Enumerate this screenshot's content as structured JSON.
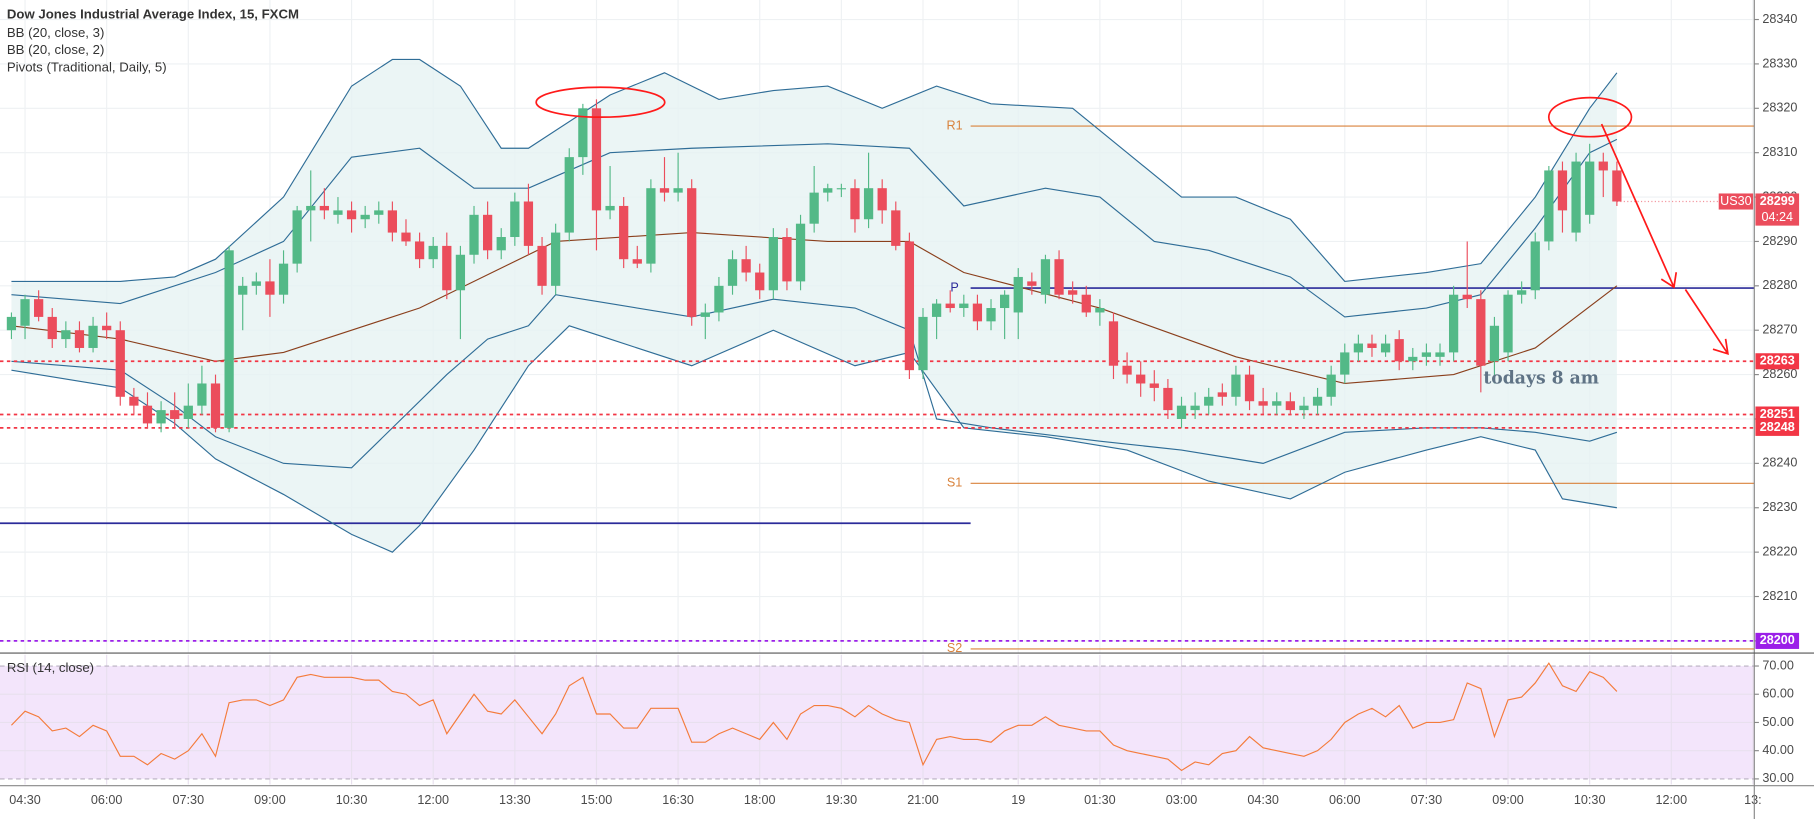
{
  "chart_data": {
    "type": "candlestick",
    "title": "Dow Jones Industrial Average Index, 15, FXCM",
    "studies": [
      "BB (20, close, 3)",
      "BB (20, close, 2)",
      "Pivots (Traditional, Daily, 5)"
    ],
    "up_color": "#53b987",
    "down_color": "#eb4d5c",
    "xlim": [
      -0.84,
      128.1
    ],
    "xticks": [
      {
        "value": 1,
        "label": "04:30"
      },
      {
        "value": 7,
        "label": "06:00"
      },
      {
        "value": 13,
        "label": "07:30"
      },
      {
        "value": 19,
        "label": "09:00"
      },
      {
        "value": 25,
        "label": "10:30"
      },
      {
        "value": 31,
        "label": "12:00"
      },
      {
        "value": 37,
        "label": "13:30"
      },
      {
        "value": 43,
        "label": "15:00"
      },
      {
        "value": 49,
        "label": "16:30"
      },
      {
        "value": 55,
        "label": "18:00"
      },
      {
        "value": 61,
        "label": "19:30"
      },
      {
        "value": 67,
        "label": "21:00"
      },
      {
        "value": 74,
        "label": "19"
      },
      {
        "value": 80,
        "label": "01:30"
      },
      {
        "value": 86,
        "label": "03:00"
      },
      {
        "value": 92,
        "label": "04:30"
      },
      {
        "value": 98,
        "label": "06:00"
      },
      {
        "value": 104,
        "label": "07:30"
      },
      {
        "value": 110,
        "label": "09:00"
      },
      {
        "value": 116,
        "label": "10:30"
      },
      {
        "value": 122,
        "label": "12:00"
      },
      {
        "value": 128,
        "label": "13:"
      }
    ],
    "ylim": [
      28197.4,
      28344.4
    ],
    "yticks": [
      28200,
      28210,
      28220,
      28230,
      28240,
      28250,
      28260,
      28270,
      28280,
      28290,
      28300,
      28310,
      28320,
      28330,
      28340
    ],
    "grid": true,
    "ohlc": [
      [
        28270,
        28274,
        28268,
        28273
      ],
      [
        28271,
        28278,
        28268,
        28277
      ],
      [
        28277,
        28279,
        28272,
        28273
      ],
      [
        28273,
        28275,
        28266,
        28268
      ],
      [
        28268,
        28272,
        28266,
        28270
      ],
      [
        28270,
        28272,
        28265,
        28266
      ],
      [
        28266,
        28273,
        28265,
        28271
      ],
      [
        28271,
        28274,
        28268,
        28270
      ],
      [
        28270,
        28272,
        28253,
        28255
      ],
      [
        28255,
        28257,
        28251,
        28253
      ],
      [
        28253,
        28256,
        28248,
        28249
      ],
      [
        28249,
        28254,
        28247,
        28252
      ],
      [
        28252,
        28256,
        28248,
        28250
      ],
      [
        28250,
        28258,
        28248,
        28253
      ],
      [
        28253,
        28262,
        28251,
        28258
      ],
      [
        28258,
        28260,
        28247,
        28248
      ],
      [
        28248,
        28289,
        28247,
        28288
      ],
      [
        28278,
        28282,
        28270,
        28280
      ],
      [
        28280,
        28283,
        28278,
        28281
      ],
      [
        28281,
        28286,
        28273,
        28278
      ],
      [
        28278,
        28288,
        28276,
        28285
      ],
      [
        28285,
        28298,
        28283,
        28297
      ],
      [
        28297,
        28306,
        28290,
        28298
      ],
      [
        28298,
        28302,
        28295,
        28297
      ],
      [
        28296,
        28300,
        28294,
        28297
      ],
      [
        28297,
        28299,
        28292,
        28295
      ],
      [
        28295,
        28298,
        28293,
        28296
      ],
      [
        28296,
        28299,
        28294,
        28297
      ],
      [
        28297,
        28299,
        28290,
        28292
      ],
      [
        28292,
        28295,
        28289,
        28290
      ],
      [
        28290,
        28292,
        28284,
        28286
      ],
      [
        28286,
        28291,
        28284,
        28289
      ],
      [
        28289,
        28292,
        28277,
        28279
      ],
      [
        28279,
        28289,
        28268,
        28287
      ],
      [
        28287,
        28298,
        28285,
        28296
      ],
      [
        28296,
        28299,
        28286,
        28288
      ],
      [
        28288,
        28293,
        28286,
        28291
      ],
      [
        28291,
        28301,
        28289,
        28299
      ],
      [
        28299,
        28303,
        28287,
        28289
      ],
      [
        28289,
        28291,
        28278,
        28280
      ],
      [
        28280,
        28294,
        28278,
        28292
      ],
      [
        28292,
        28311,
        28290,
        28309
      ],
      [
        28309,
        28321,
        28305,
        28320
      ],
      [
        28320,
        28322,
        28288,
        28297
      ],
      [
        28297,
        28307,
        28295,
        28298
      ],
      [
        28298,
        28300,
        28284,
        28286
      ],
      [
        28286,
        28289,
        28284,
        28285
      ],
      [
        28285,
        28304,
        28283,
        28302
      ],
      [
        28302,
        28309,
        28299,
        28301
      ],
      [
        28301,
        28310,
        28299,
        28302
      ],
      [
        28302,
        28304,
        28271,
        28273
      ],
      [
        28273,
        28276,
        28268,
        28274
      ],
      [
        28274,
        28282,
        28272,
        28280
      ],
      [
        28280,
        28288,
        28278,
        28286
      ],
      [
        28286,
        28289,
        28281,
        28283
      ],
      [
        28283,
        28285,
        28277,
        28279
      ],
      [
        28279,
        28293,
        28277,
        28291
      ],
      [
        28291,
        28293,
        28279,
        28281
      ],
      [
        28281,
        28296,
        28279,
        28294
      ],
      [
        28294,
        28307,
        28292,
        28301
      ],
      [
        28301,
        28303,
        28299,
        28302
      ],
      [
        28302,
        28303,
        28300,
        28302
      ],
      [
        28302,
        28304,
        28292,
        28295
      ],
      [
        28295,
        28310,
        28293,
        28302
      ],
      [
        28302,
        28304,
        28294,
        28297
      ],
      [
        28297,
        28299,
        28288,
        28289
      ],
      [
        28290,
        28292,
        28259,
        28261
      ],
      [
        28261,
        28275,
        28259,
        28273
      ],
      [
        28273,
        28277,
        28268,
        28276
      ],
      [
        28276,
        28279,
        28274,
        28275
      ],
      [
        28275,
        28278,
        28273,
        28276
      ],
      [
        28276,
        28278,
        28270,
        28272
      ],
      [
        28272,
        28277,
        28270,
        28275
      ],
      [
        28275,
        28279,
        28268,
        28278
      ],
      [
        28274,
        28284,
        28268,
        28282
      ],
      [
        28281,
        28283,
        28278,
        28280
      ],
      [
        28278,
        28287,
        28276,
        28286
      ],
      [
        28286,
        28288,
        28277,
        28278
      ],
      [
        28279,
        28281,
        28276,
        28278
      ],
      [
        28278,
        28280,
        28273,
        28274
      ],
      [
        28274,
        28277,
        28271,
        28275
      ],
      [
        28272,
        28274,
        28259,
        28262
      ],
      [
        28262,
        28265,
        28258,
        28260
      ],
      [
        28260,
        28263,
        28255,
        28258
      ],
      [
        28258,
        28261,
        28254,
        28257
      ],
      [
        28257,
        28259,
        28250,
        28252
      ],
      [
        28250,
        28255,
        28248,
        28253
      ],
      [
        28252,
        28256,
        28250,
        28253
      ],
      [
        28253,
        28257,
        28251,
        28255
      ],
      [
        28256,
        28258,
        28253,
        28255
      ],
      [
        28255,
        28262,
        28253,
        28260
      ],
      [
        28260,
        28262,
        28252,
        28254
      ],
      [
        28254,
        28257,
        28251,
        28253
      ],
      [
        28253,
        28256,
        28251,
        28254
      ],
      [
        28254,
        28256,
        28251,
        28252
      ],
      [
        28252,
        28255,
        28250,
        28253
      ],
      [
        28253,
        28257,
        28251,
        28255
      ],
      [
        28255,
        28262,
        28253,
        28260
      ],
      [
        28260,
        28267,
        28258,
        28265
      ],
      [
        28265,
        28269,
        28263,
        28267
      ],
      [
        28267,
        28269,
        28264,
        28266
      ],
      [
        28265,
        28269,
        28264,
        28267
      ],
      [
        28268,
        28270,
        28261,
        28263
      ],
      [
        28263,
        28266,
        28261,
        28264
      ],
      [
        28264,
        28267,
        28262,
        28265
      ],
      [
        28264,
        28267,
        28262,
        28265
      ],
      [
        28265,
        28280,
        28263,
        28278
      ],
      [
        28278,
        28290,
        28275,
        28277
      ],
      [
        28277,
        28279,
        28256,
        28262
      ],
      [
        28263,
        28273,
        28258,
        28271
      ],
      [
        28265,
        28279,
        28263,
        28278
      ],
      [
        28278,
        28281,
        28276,
        28279
      ],
      [
        28279,
        28292,
        28277,
        28290
      ],
      [
        28290,
        28307,
        28288,
        28306
      ],
      [
        28306,
        28308,
        28292,
        28297
      ],
      [
        28292,
        28310,
        28290,
        28308
      ],
      [
        28296,
        28312,
        28294,
        28308
      ],
      [
        28308,
        28310,
        28300,
        28306
      ],
      [
        28306,
        28308,
        28298,
        28299
      ]
    ],
    "bands": [
      {
        "color": "#2f6d97",
        "x": [
          0,
          8,
          12,
          15,
          20,
          25,
          28,
          30,
          33,
          36,
          38,
          41,
          44,
          48,
          52,
          56,
          60,
          64,
          68,
          72,
          78,
          82,
          86,
          90,
          94,
          98,
          104,
          108,
          112,
          116,
          118
        ],
        "values": [
          28281,
          28281,
          28282,
          28286,
          28300,
          28325,
          28331,
          28331,
          28325,
          28311,
          28311,
          28317,
          28323,
          28328,
          28322,
          28324,
          28325,
          28320,
          28325,
          28321,
          28320,
          28310,
          28300,
          28300,
          28295,
          28281,
          28283,
          28285,
          28300,
          28320,
          28328
        ]
      },
      {
        "color": "#2f6d97",
        "x": [
          0,
          8,
          15,
          20,
          25,
          30,
          34,
          38,
          41,
          44,
          50,
          60,
          66,
          70,
          76,
          80,
          84,
          88,
          94,
          98,
          104,
          108,
          112,
          116,
          118
        ],
        "values": [
          28278,
          28276,
          28283,
          28290,
          28309,
          28311,
          28302,
          28302,
          28306,
          28310,
          28311,
          28312,
          28311,
          28298,
          28302,
          28300,
          28290,
          28288,
          28282,
          28273,
          28275,
          28278,
          28293,
          28310,
          28313
        ]
      },
      {
        "color": "#8a3f1c",
        "x": [
          0,
          8,
          15,
          20,
          30,
          40,
          50,
          60,
          66,
          70,
          80,
          90,
          98,
          106,
          112,
          118
        ],
        "values": [
          28271,
          28268,
          28263,
          28265,
          28275,
          28290,
          28292,
          28290,
          28290,
          28283,
          28275,
          28264,
          28258,
          28260,
          28266,
          28280
        ]
      },
      {
        "color": "#2f6d97",
        "x": [
          0,
          8,
          12,
          15,
          20,
          25,
          28,
          32,
          35,
          38,
          40,
          44,
          50,
          56,
          62,
          66,
          68,
          72,
          80,
          86,
          92,
          98,
          104,
          108,
          112,
          116,
          118
        ],
        "values": [
          28263,
          28261,
          28253,
          28246,
          28240,
          28239,
          28248,
          28260,
          28268,
          28271,
          28278,
          28276,
          28273,
          28277,
          28275,
          28270,
          28250,
          28248,
          28245,
          28243,
          28240,
          28247,
          28248,
          28248,
          28247,
          28245,
          28247
        ]
      },
      {
        "color": "#2f6d97",
        "x": [
          0,
          8,
          12,
          15,
          20,
          25,
          28,
          30,
          34,
          38,
          41,
          44,
          50,
          56,
          62,
          66,
          70,
          76,
          82,
          88,
          94,
          98,
          104,
          108,
          112,
          114,
          118
        ],
        "values": [
          28261,
          28257,
          28249,
          28241,
          28233,
          28224,
          28220,
          28226,
          28243,
          28262,
          28271,
          28268,
          28262,
          28270,
          28262,
          28265,
          28248,
          28246,
          28243,
          28236,
          28232,
          28238,
          28243,
          28246,
          28243,
          28232,
          28230
        ]
      }
    ],
    "band_fill": "#e6f3f3",
    "pivots_start_x": 70.5,
    "pivots": [
      {
        "name": "R1",
        "value": 28316,
        "color": "#d9823b"
      },
      {
        "name": "P",
        "value": 28279.5,
        "color": "#2b2b9a"
      },
      {
        "name": "S1",
        "value": 28235.5,
        "color": "#d9823b"
      },
      {
        "name": "S2",
        "value": 28198.2,
        "color": "#d9823b"
      }
    ],
    "prev_pivot": {
      "value": 28226.5,
      "color": "#2b2b9a"
    },
    "hlines": [
      {
        "value": 28263,
        "color": "#f23645"
      },
      {
        "value": 28251,
        "color": "#f23645"
      },
      {
        "value": 28248,
        "color": "#f23645"
      },
      {
        "value": 28200,
        "color": "#9b1fe8"
      }
    ],
    "last_price": 28299,
    "symbol": "US30",
    "countdown": "04:24",
    "annotations": [
      "todays 8 am"
    ],
    "rsi": {
      "title": "RSI (14, close)",
      "color": "#f47b3b",
      "ylim": [
        28,
        74
      ],
      "yticks": [
        {
          "value": 30,
          "label": "30.00"
        },
        {
          "value": 40,
          "label": "40.00"
        },
        {
          "value": 50,
          "label": "50.00"
        },
        {
          "value": 60,
          "label": "60.00"
        },
        {
          "value": 70,
          "label": "70.00"
        }
      ],
      "band": [
        30,
        70
      ],
      "band_color": "#f3e5fb",
      "values": [
        49,
        54,
        52,
        47,
        48,
        45,
        49,
        47,
        38,
        38,
        35,
        39,
        37,
        40,
        46,
        38,
        57,
        58,
        58,
        56,
        58,
        66,
        67,
        66,
        66,
        66,
        65,
        65,
        61,
        60,
        56,
        58,
        46,
        53,
        60,
        54,
        53,
        58,
        52,
        46,
        53,
        63,
        66,
        53,
        53,
        48,
        48,
        55,
        55,
        55,
        43,
        43,
        46,
        48,
        46,
        44,
        50,
        44,
        53,
        56,
        56,
        55,
        52,
        56,
        53,
        51,
        50,
        35,
        44,
        45,
        44,
        44,
        43,
        47,
        49,
        49,
        52,
        49,
        48,
        47,
        47,
        42,
        40,
        39,
        38,
        37,
        33,
        36,
        35,
        39,
        40,
        45,
        41,
        40,
        39,
        38,
        40,
        44,
        50,
        53,
        55,
        52,
        56,
        48,
        50,
        50,
        51,
        64,
        62,
        45,
        58,
        59,
        64,
        71,
        63,
        61,
        68,
        66,
        61
      ]
    }
  }
}
